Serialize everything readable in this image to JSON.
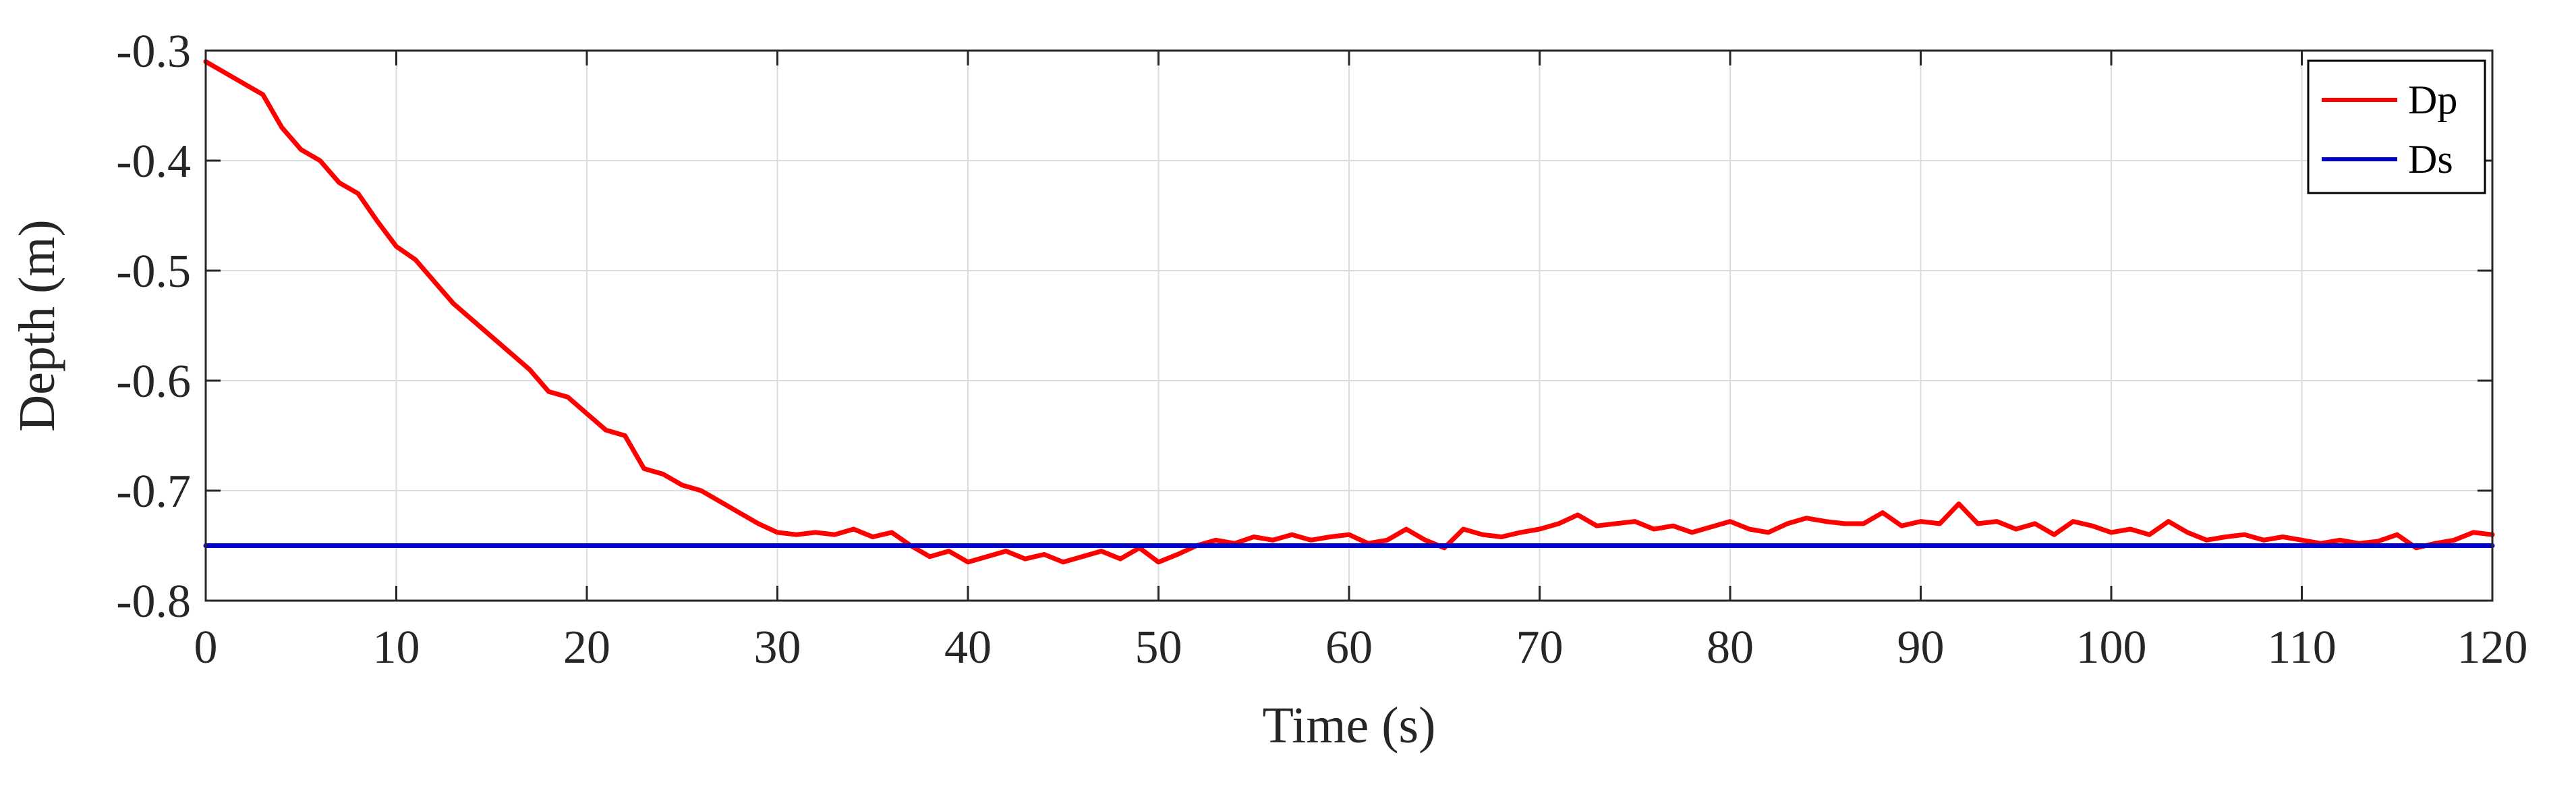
{
  "chart_data": {
    "type": "line",
    "title": "",
    "xlabel": "Time (s)",
    "ylabel": "Depth (m)",
    "xlim": [
      0,
      120
    ],
    "ylim": [
      -0.8,
      -0.3
    ],
    "xticks": [
      0,
      10,
      20,
      30,
      40,
      50,
      60,
      70,
      80,
      90,
      100,
      110,
      120
    ],
    "yticks": [
      -0.8,
      -0.7,
      -0.6,
      -0.5,
      -0.4,
      -0.3
    ],
    "xtick_labels": [
      "0",
      "10",
      "20",
      "30",
      "40",
      "50",
      "60",
      "70",
      "80",
      "90",
      "100",
      "110",
      "120"
    ],
    "ytick_labels": [
      "-0.8",
      "-0.7",
      "-0.6",
      "-0.5",
      "-0.4",
      "-0.3"
    ],
    "grid": true,
    "legend_position": "top-right",
    "series": [
      {
        "name": "Dp",
        "color": "#ff0000",
        "x": [
          0,
          1,
          2,
          3,
          4,
          5,
          6,
          7,
          8,
          9,
          10,
          11,
          12,
          13,
          14,
          15,
          16,
          17,
          18,
          19,
          20,
          21,
          22,
          23,
          24,
          25,
          26,
          27,
          28,
          29,
          30,
          31,
          32,
          33,
          34,
          35,
          36,
          37,
          38,
          39,
          40,
          41,
          42,
          43,
          44,
          45,
          46,
          47,
          48,
          49,
          50,
          51,
          52,
          53,
          54,
          55,
          56,
          57,
          58,
          59,
          60,
          61,
          62,
          63,
          64,
          65,
          66,
          67,
          68,
          69,
          70,
          71,
          72,
          73,
          74,
          75,
          76,
          77,
          78,
          79,
          80,
          81,
          82,
          83,
          84,
          85,
          86,
          87,
          88,
          89,
          90,
          91,
          92,
          93,
          94,
          95,
          96,
          97,
          98,
          99,
          100,
          101,
          102,
          103,
          104,
          105,
          106,
          107,
          108,
          109,
          110,
          111,
          112,
          113,
          114,
          115,
          116,
          117,
          118,
          119,
          120
        ],
        "values": [
          -0.31,
          -0.32,
          -0.33,
          -0.34,
          -0.37,
          -0.39,
          -0.4,
          -0.42,
          -0.43,
          -0.455,
          -0.478,
          -0.49,
          -0.51,
          -0.53,
          -0.545,
          -0.56,
          -0.575,
          -0.59,
          -0.61,
          -0.615,
          -0.63,
          -0.645,
          -0.65,
          -0.68,
          -0.685,
          -0.695,
          -0.7,
          -0.71,
          -0.72,
          -0.73,
          -0.738,
          -0.74,
          -0.738,
          -0.74,
          -0.735,
          -0.742,
          -0.738,
          -0.75,
          -0.76,
          -0.755,
          -0.765,
          -0.76,
          -0.755,
          -0.762,
          -0.758,
          -0.765,
          -0.76,
          -0.755,
          -0.762,
          -0.752,
          -0.765,
          -0.758,
          -0.75,
          -0.745,
          -0.748,
          -0.742,
          -0.745,
          -0.74,
          -0.745,
          -0.742,
          -0.74,
          -0.748,
          -0.745,
          -0.735,
          -0.745,
          -0.752,
          -0.735,
          -0.74,
          -0.742,
          -0.738,
          -0.735,
          -0.73,
          -0.722,
          -0.732,
          -0.73,
          -0.728,
          -0.735,
          -0.732,
          -0.738,
          -0.733,
          -0.728,
          -0.735,
          -0.738,
          -0.73,
          -0.725,
          -0.728,
          -0.73,
          -0.73,
          -0.72,
          -0.732,
          -0.728,
          -0.73,
          -0.712,
          -0.73,
          -0.728,
          -0.735,
          -0.73,
          -0.74,
          -0.728,
          -0.732,
          -0.738,
          -0.735,
          -0.74,
          -0.728,
          -0.738,
          -0.745,
          -0.742,
          -0.74,
          -0.745,
          -0.742,
          -0.745,
          -0.748,
          -0.745,
          -0.748,
          -0.746,
          -0.74,
          -0.752,
          -0.748,
          -0.745,
          -0.738,
          -0.74
        ]
      },
      {
        "name": "Ds",
        "color": "#0000cc",
        "x": [
          0,
          120
        ],
        "values": [
          -0.75,
          -0.75
        ]
      }
    ]
  }
}
